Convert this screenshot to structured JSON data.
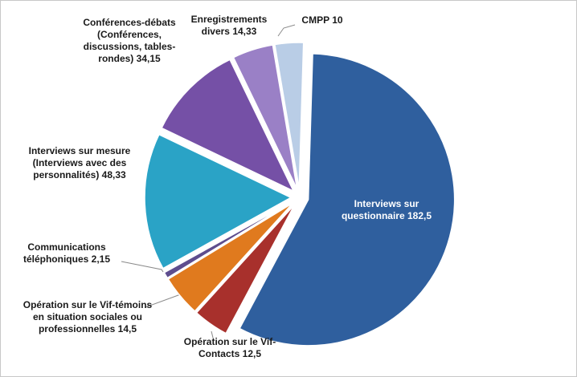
{
  "chart_data": {
    "type": "pie",
    "categories": [
      "Interviews sur questionnaire",
      "Opération sur le Vif-Contacts",
      "Opération sur le Vif-témoins en situation sociales ou professionnelles",
      "Communications téléphoniques",
      "Interviews sur mesure (Interviews avec des personnalités)",
      "Conférences-débats (Conférences, discussions, tables-rondes)",
      "Enregistrements divers",
      "CMPP"
    ],
    "values": [
      182.5,
      12.5,
      14.5,
      2.15,
      48.33,
      34.15,
      14.33,
      10
    ],
    "value_labels": [
      "182,5",
      "12,5",
      "14,5",
      "2,15",
      "48,33",
      "34,15",
      "14,33",
      "10"
    ],
    "colors": [
      "#2f5f9e",
      "#a8302c",
      "#e07a1e",
      "#5e4d8e",
      "#2aa3c6",
      "#7550a6",
      "#9a80c6",
      "#b9cde6"
    ]
  }
}
